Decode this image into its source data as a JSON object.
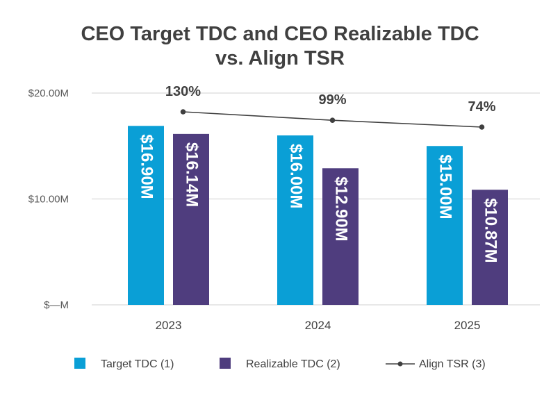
{
  "chart_data": {
    "type": "bar",
    "title": [
      "CEO Target TDC and CEO Realizable TDC",
      "vs. Align TSR"
    ],
    "categories": [
      "2023",
      "2024",
      "2025"
    ],
    "ylim": [
      0,
      20
    ],
    "yticks": [
      {
        "value": 0,
        "label": "$—M"
      },
      {
        "value": 10,
        "label": "$10.00M"
      },
      {
        "value": 20,
        "label": "$20.00M"
      }
    ],
    "series": [
      {
        "name": "Target TDC (1)",
        "color": "#0a9fd6",
        "values": [
          16.9,
          16.0,
          15.0
        ],
        "labels": [
          "$16.90M",
          "$16.00M",
          "$15.00M"
        ]
      },
      {
        "name": "Realizable TDC (2)",
        "color": "#4f3d7e",
        "values": [
          16.14,
          12.9,
          10.87
        ],
        "labels": [
          "$16.14M",
          "$12.90M",
          "$10.87M"
        ]
      }
    ],
    "line_series": {
      "name": "Align TSR (3)",
      "color": "#404040",
      "values": [
        130,
        99,
        74
      ],
      "labels": [
        "130%",
        "99%",
        "74%"
      ]
    },
    "grid": true,
    "legend": "bottom"
  }
}
